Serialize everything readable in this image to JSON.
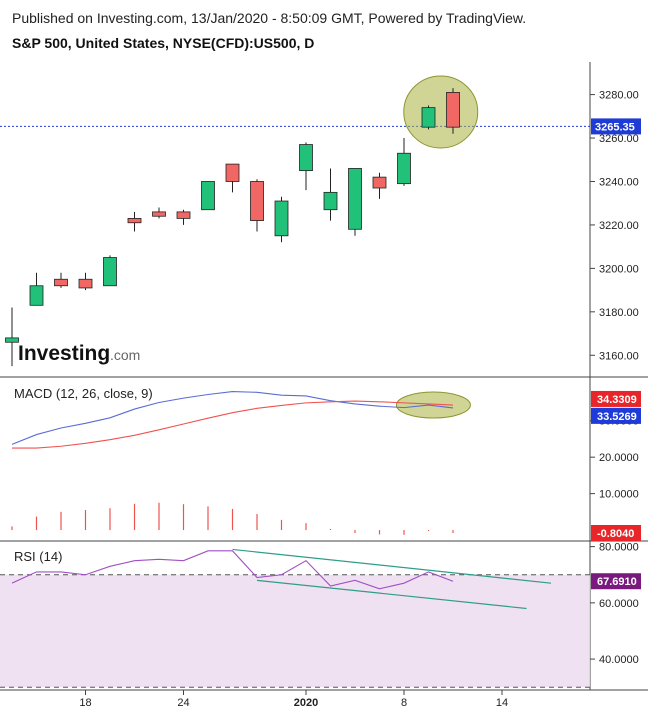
{
  "header": {
    "published": "Published on Investing.com, 13/Jan/2020 - 8:50:09 GMT, Powered by TradingView.",
    "symbol": "S&P 500, United States, NYSE(CFD):US500, D"
  },
  "logo": {
    "main": "Investing",
    "suffix": ".com"
  },
  "colors": {
    "up": "#22c17a",
    "down": "#f06763",
    "macd": "#5b6cd6",
    "signal": "#ef5350",
    "rsi": "#a14fc4",
    "trend": "#2e9d8a",
    "highlight": "#a9b33e",
    "price_line": "#1f3bd6",
    "macd_label_bg": "#e8262a",
    "signal_label_bg": "#1e3bd9",
    "hist_label_bg": "#e8262a",
    "rsi_label_bg": "#7b1a7e"
  },
  "chart_data": [
    {
      "type": "candlestick",
      "title": "S&P 500, United States, NYSE(CFD):US500, D",
      "ylim": [
        3150,
        3295
      ],
      "y_ticks": [
        "3280.00",
        "3260.00",
        "3240.00",
        "3220.00",
        "3200.00",
        "3180.00",
        "3160.00"
      ],
      "y_tick_values": [
        3280,
        3260,
        3240,
        3220,
        3200,
        3180,
        3160
      ],
      "last_price": 3265.35,
      "last_price_label": "3265.35",
      "candles": [
        {
          "i": 0,
          "o": 3166,
          "h": 3182,
          "l": 3155,
          "c": 3168
        },
        {
          "i": 1,
          "o": 3183,
          "h": 3198,
          "l": 3183,
          "c": 3192
        },
        {
          "i": 2,
          "o": 3195,
          "h": 3198,
          "l": 3191,
          "c": 3192
        },
        {
          "i": 3,
          "o": 3195,
          "h": 3198,
          "l": 3190,
          "c": 3191
        },
        {
          "i": 4,
          "o": 3192,
          "h": 3206,
          "l": 3192,
          "c": 3205
        },
        {
          "i": 5,
          "o": 3223,
          "h": 3226,
          "l": 3217,
          "c": 3221
        },
        {
          "i": 6,
          "o": 3226,
          "h": 3228,
          "l": 3223,
          "c": 3224
        },
        {
          "i": 7,
          "o": 3226,
          "h": 3227,
          "l": 3220,
          "c": 3223
        },
        {
          "i": 8,
          "o": 3227,
          "h": 3240,
          "l": 3227,
          "c": 3240
        },
        {
          "i": 9,
          "o": 3248,
          "h": 3248,
          "l": 3235,
          "c": 3240
        },
        {
          "i": 10,
          "o": 3240,
          "h": 3241,
          "l": 3217,
          "c": 3222
        },
        {
          "i": 11,
          "o": 3215,
          "h": 3233,
          "l": 3212,
          "c": 3231
        },
        {
          "i": 12,
          "o": 3245,
          "h": 3258,
          "l": 3236,
          "c": 3257
        },
        {
          "i": 13,
          "o": 3227,
          "h": 3246,
          "l": 3222,
          "c": 3235
        },
        {
          "i": 14,
          "o": 3218,
          "h": 3246,
          "l": 3215,
          "c": 3246
        },
        {
          "i": 15,
          "o": 3242,
          "h": 3244,
          "l": 3232,
          "c": 3237
        },
        {
          "i": 16,
          "o": 3239,
          "h": 3260,
          "l": 3238,
          "c": 3253
        },
        {
          "i": 17,
          "o": 3265,
          "h": 3275,
          "l": 3264,
          "c": 3274
        },
        {
          "i": 18,
          "o": 3281,
          "h": 3283,
          "l": 3262,
          "c": 3265
        }
      ],
      "x_ticks": [
        {
          "label": "18",
          "i": 3
        },
        {
          "label": "24",
          "i": 7
        },
        {
          "label": "2020",
          "i": 12
        },
        {
          "label": "8",
          "i": 16
        },
        {
          "label": "14",
          "i": 20
        }
      ],
      "annotations": [
        {
          "shape": "ellipse",
          "around": "last two candles"
        }
      ]
    },
    {
      "type": "line",
      "title": "MACD (12, 26, close, 9)",
      "ylim": [
        -3,
        42
      ],
      "y_ticks": [
        "30.0000",
        "20.0000",
        "10.0000"
      ],
      "y_tick_values": [
        30,
        20,
        10
      ],
      "series": [
        {
          "name": "MACD",
          "label": "33.5269",
          "value": 33.5269,
          "values": [
            23.5,
            26.2,
            28.0,
            29.3,
            30.8,
            33.2,
            35.0,
            36.2,
            37.2,
            38.0,
            37.8,
            37.0,
            36.8,
            35.5,
            34.6,
            34.0,
            33.6,
            34.3,
            33.5
          ]
        },
        {
          "name": "Signal",
          "label": "34.3309",
          "value": 34.3309,
          "values": [
            22.5,
            22.5,
            23.0,
            23.8,
            24.8,
            26.0,
            27.5,
            29.1,
            30.7,
            32.2,
            33.4,
            34.2,
            34.9,
            35.2,
            35.4,
            35.2,
            34.9,
            34.6,
            34.3
          ]
        },
        {
          "name": "Histogram",
          "label": "-0.8040",
          "value": -0.804,
          "values": [
            1.0,
            3.7,
            5.0,
            5.5,
            6.0,
            7.2,
            7.5,
            7.1,
            6.5,
            5.8,
            4.4,
            2.8,
            1.9,
            0.3,
            -0.8,
            -1.2,
            -1.3,
            -0.3,
            -0.8
          ]
        }
      ],
      "annotations": [
        {
          "shape": "ellipse",
          "around": "last MACD values"
        }
      ]
    },
    {
      "type": "line",
      "title": "RSI (14)",
      "ylim": [
        29,
        82
      ],
      "y_ticks": [
        "80.0000",
        "60.0000",
        "40.0000"
      ],
      "y_tick_values": [
        80,
        60,
        40
      ],
      "upper_band": 70,
      "lower_band": 30,
      "series": [
        {
          "name": "RSI",
          "label": "67.6910",
          "value": 67.691,
          "values": [
            67.0,
            71.0,
            71.0,
            70.0,
            73.0,
            75.0,
            75.5,
            75.0,
            78.5,
            78.5,
            69.0,
            70.0,
            75.0,
            66.0,
            68.0,
            65.0,
            67.0,
            71.0,
            67.7
          ]
        }
      ],
      "trendlines": [
        {
          "from": {
            "i": 9,
            "v": 79
          },
          "to": {
            "i": 22,
            "v": 67
          }
        },
        {
          "from": {
            "i": 10,
            "v": 68
          },
          "to": {
            "i": 21,
            "v": 58
          }
        }
      ]
    }
  ]
}
